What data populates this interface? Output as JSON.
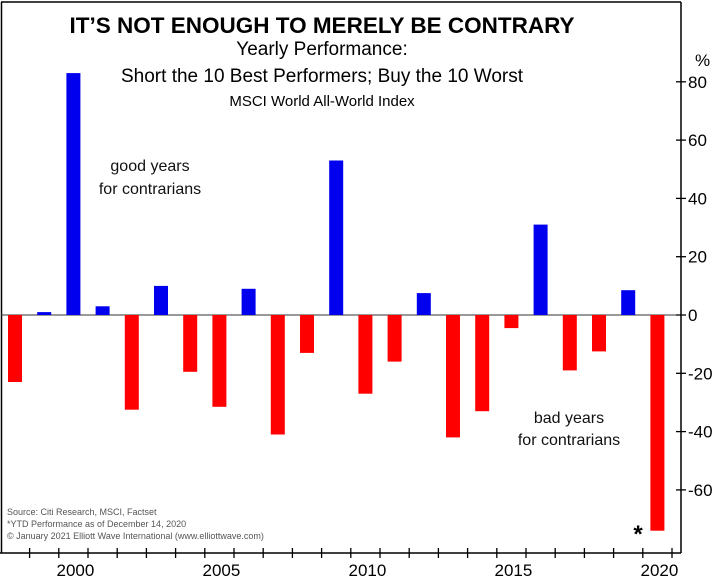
{
  "chart_data": {
    "type": "bar",
    "title": "IT’S NOT ENOUGH TO MERELY BE CONTRARY",
    "subtitle_lines": [
      "Yearly Performance:",
      "Short the 10 Best Performers; Buy the 10 Worst",
      "MSCI World All-World Index"
    ],
    "xlabel": "",
    "ylabel": "%",
    "ylim": [
      -80,
      88
    ],
    "yticks": [
      80,
      60,
      40,
      20,
      0,
      -20,
      -40,
      -60
    ],
    "xticks_labeled": [
      2000,
      2005,
      2010,
      2015,
      2020
    ],
    "x_range": [
      1998,
      2020
    ],
    "grid": false,
    "categories": [
      1998,
      1999,
      2000,
      2001,
      2002,
      2003,
      2004,
      2005,
      2006,
      2007,
      2008,
      2009,
      2010,
      2011,
      2012,
      2013,
      2014,
      2015,
      2016,
      2017,
      2018,
      2019,
      2020
    ],
    "values": [
      -23,
      1,
      83,
      3,
      -32.5,
      10,
      -19.5,
      -31.5,
      9,
      -41,
      -13,
      53,
      -27,
      -16,
      7.5,
      -42,
      -33,
      -4.5,
      31,
      -19,
      -12.5,
      8.5,
      -74
    ],
    "colors": {
      "positive": "#0000ee",
      "negative": "#ff0000",
      "axis": "#000000"
    },
    "annotations": {
      "good": [
        "good years",
        "for contrarians"
      ],
      "bad": [
        "bad years",
        "for contrarians"
      ],
      "asterisk": "*"
    },
    "footnotes": [
      "Source: Citi Research, MSCI, Factset",
      "*YTD Performance as of December 14, 2020",
      "© January 2021 Elliott Wave International (www.elliottwave.com)"
    ]
  }
}
